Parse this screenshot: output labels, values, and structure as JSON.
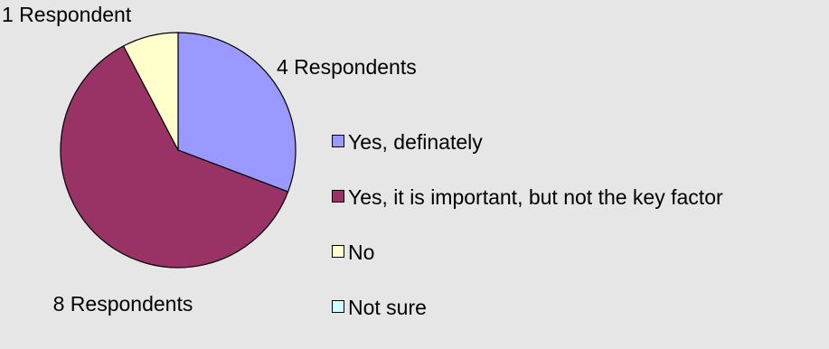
{
  "chart_data": {
    "type": "pie",
    "categories": [
      "Yes, definately",
      "Yes, it is important, but not the key factor",
      "No",
      "Not sure"
    ],
    "values": [
      4,
      8,
      1,
      0
    ],
    "colors": [
      "#9999ff",
      "#993366",
      "#ffffcc",
      "#ccffff"
    ],
    "data_labels": [
      "4 Respondents",
      "8 Respondents",
      "1 Respondent",
      ""
    ],
    "legend_position": "right",
    "title": ""
  }
}
